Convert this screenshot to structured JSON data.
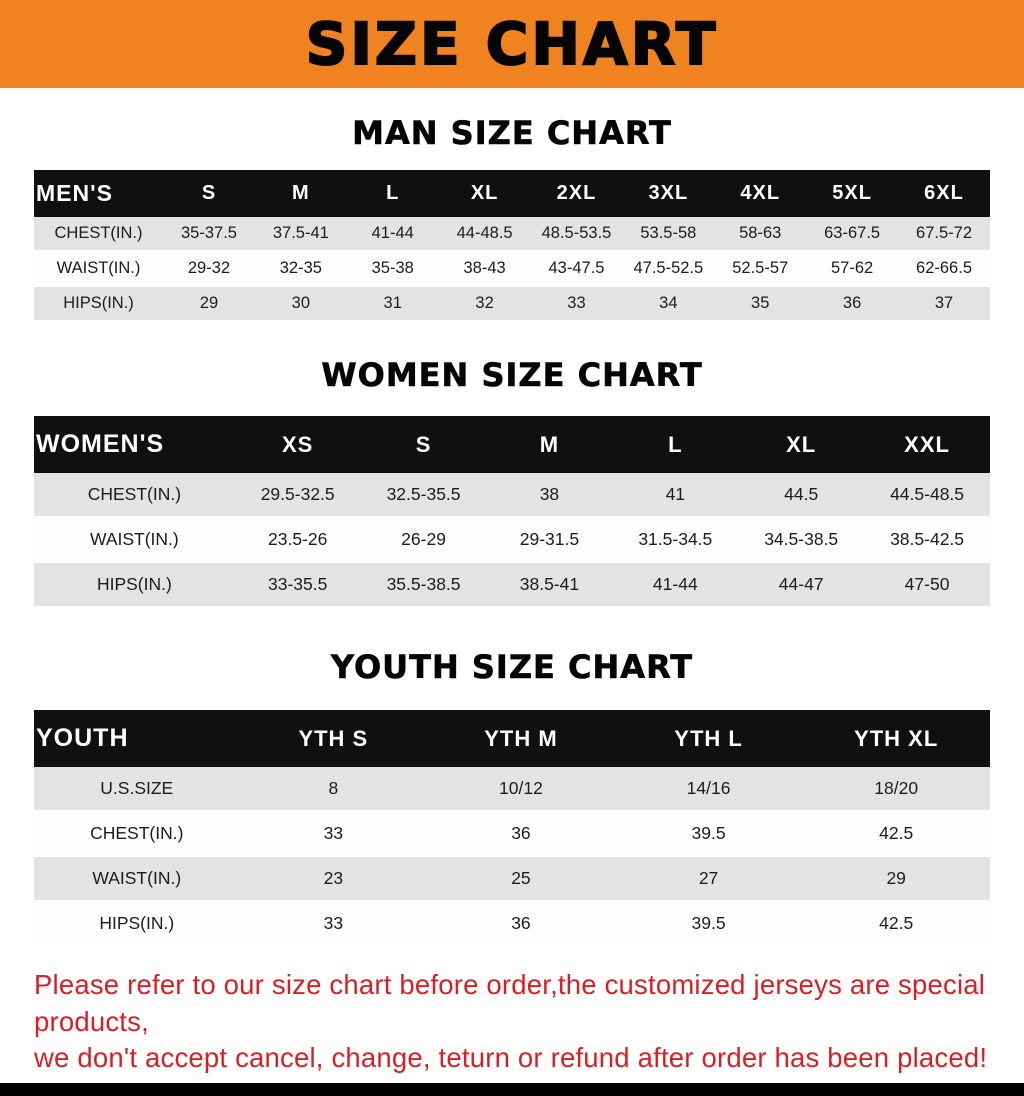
{
  "banner": {
    "title": "SIZE CHART"
  },
  "colors": {
    "banner_bg": "#f0831f",
    "header_bg": "#101010",
    "row_alt": "#e3e3e3",
    "disclaimer": "#d81f26"
  },
  "sections": [
    {
      "heading": "MAN SIZE CHART",
      "table": {
        "header": [
          "MEN'S",
          "S",
          "M",
          "L",
          "XL",
          "2XL",
          "3XL",
          "4XL",
          "5XL",
          "6XL"
        ],
        "rows": [
          [
            "CHEST(IN.)",
            "35-37.5",
            "37.5-41",
            "41-44",
            "44-48.5",
            "48.5-53.5",
            "53.5-58",
            "58-63",
            "63-67.5",
            "67.5-72"
          ],
          [
            "WAIST(IN.)",
            "29-32",
            "32-35",
            "35-38",
            "38-43",
            "43-47.5",
            "47.5-52.5",
            "52.5-57",
            "57-62",
            "62-66.5"
          ],
          [
            "HIPS(IN.)",
            "29",
            "30",
            "31",
            "32",
            "33",
            "34",
            "35",
            "36",
            "37"
          ]
        ]
      }
    },
    {
      "heading": "WOMEN SIZE CHART",
      "table": {
        "header": [
          "WOMEN'S",
          "XS",
          "S",
          "M",
          "L",
          "XL",
          "XXL"
        ],
        "rows": [
          [
            "CHEST(IN.)",
            "29.5-32.5",
            "32.5-35.5",
            "38",
            "41",
            "44.5",
            "44.5-48.5"
          ],
          [
            "WAIST(IN.)",
            "23.5-26",
            "26-29",
            "29-31.5",
            "31.5-34.5",
            "34.5-38.5",
            "38.5-42.5"
          ],
          [
            "HIPS(IN.)",
            "33-35.5",
            "35.5-38.5",
            "38.5-41",
            "41-44",
            "44-47",
            "47-50"
          ]
        ]
      }
    },
    {
      "heading": "YOUTH SIZE CHART",
      "table": {
        "header": [
          "YOUTH",
          "YTH S",
          "YTH M",
          "YTH L",
          "YTH XL"
        ],
        "rows": [
          [
            "U.S.SIZE",
            "8",
            "10/12",
            "14/16",
            "18/20"
          ],
          [
            "CHEST(IN.)",
            "33",
            "36",
            "39.5",
            "42.5"
          ],
          [
            "WAIST(IN.)",
            "23",
            "25",
            "27",
            "29"
          ],
          [
            "HIPS(IN.)",
            "33",
            "36",
            "39.5",
            "42.5"
          ]
        ]
      }
    }
  ],
  "disclaimer": {
    "line1": "Please refer to our size chart before order,the customized jerseys are special products,",
    "line2": "we don't accept cancel, change, teturn or refund after order has been placed!"
  }
}
